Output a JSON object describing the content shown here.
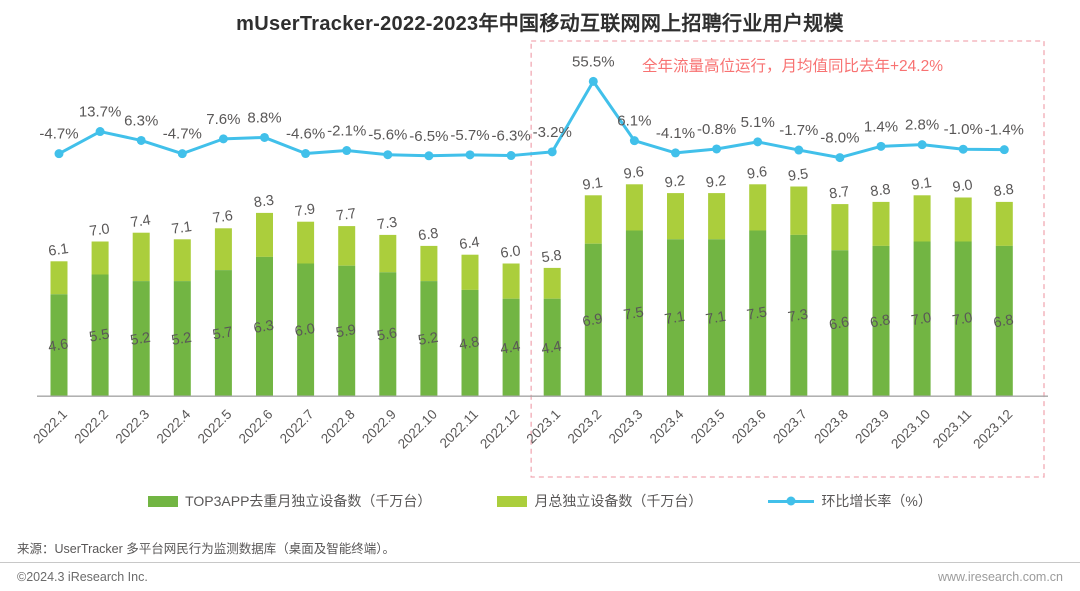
{
  "title": "mUserTracker-2022-2023年中国移动互联网网上招聘行业用户规模",
  "annotation": "全年流量高位运行，月均值同比去年+24.2%",
  "legend": {
    "top3": "TOP3APP去重月独立设备数（千万台）",
    "total": "月总独立设备数（千万台）",
    "growth": "环比增长率（%）"
  },
  "footer": {
    "source": "来源：UserTracker 多平台网民行为监测数据库（桌面及智能终端）。",
    "copyright": "©2024.3 iResearch Inc.",
    "website": "www.iresearch.com.cn"
  },
  "colors": {
    "top3_bar": "#72b543",
    "total_bar": "#abce3c",
    "growth_line": "#41c0ea",
    "label_text": "#595757",
    "axis_line": "#a6a6a6",
    "annotation_text": "#f87272",
    "annotation_border": "#f2aab4",
    "title_text": "#2f2f2f"
  },
  "chart_data": {
    "type": "bar",
    "title": "mUserTracker-2022-2023年中国移动互联网网上招聘行业用户规模",
    "categories": [
      "2022.1",
      "2022.2",
      "2022.3",
      "2022.4",
      "2022.5",
      "2022.6",
      "2022.7",
      "2022.8",
      "2022.9",
      "2022.10",
      "2022.11",
      "2022.12",
      "2023.1",
      "2023.2",
      "2023.3",
      "2023.4",
      "2023.5",
      "2023.6",
      "2023.7",
      "2023.8",
      "2023.9",
      "2023.10",
      "2023.11",
      "2023.12"
    ],
    "series": [
      {
        "name": "TOP3APP去重月独立设备数（千万台）",
        "type": "bar",
        "values": [
          4.6,
          5.5,
          5.2,
          5.2,
          5.7,
          6.3,
          6.0,
          5.9,
          5.6,
          5.2,
          4.8,
          4.4,
          4.4,
          6.9,
          7.5,
          7.1,
          7.1,
          7.5,
          7.3,
          6.6,
          6.8,
          7.0,
          7.0,
          6.8
        ]
      },
      {
        "name": "月总独立设备数（千万台）",
        "type": "bar",
        "values": [
          6.1,
          7.0,
          7.4,
          7.1,
          7.6,
          8.3,
          7.9,
          7.7,
          7.3,
          6.8,
          6.4,
          6.0,
          5.8,
          9.1,
          9.6,
          9.2,
          9.2,
          9.6,
          9.5,
          8.7,
          8.8,
          9.1,
          9.0,
          8.8
        ]
      },
      {
        "name": "环比增长率（%）",
        "type": "line",
        "unit": "%",
        "values": [
          -4.7,
          13.7,
          6.3,
          -4.7,
          7.6,
          8.8,
          -4.6,
          -2.1,
          -5.6,
          -6.5,
          -5.7,
          -6.3,
          -3.2,
          55.5,
          6.1,
          -4.1,
          -0.8,
          5.1,
          -1.7,
          -8.0,
          1.4,
          2.8,
          -1.0,
          -1.4
        ]
      }
    ],
    "bar_ylim": [
      0,
      10
    ],
    "grid": false,
    "legend_position": "bottom",
    "annotation_box_range": [
      "2023.1",
      "2023.12"
    ]
  }
}
